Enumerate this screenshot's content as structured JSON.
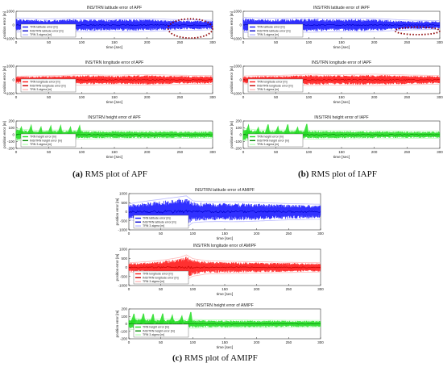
{
  "chart_data": [
    {
      "panel": "a",
      "caption_label": "(a)",
      "caption_text": "RMS plot of APF",
      "subplots": [
        {
          "type": "area",
          "title": "INS/TRN latitude error of APF",
          "ylabel": "position error [m]",
          "xlabel": "time [sec]",
          "xlim": [
            0,
            300
          ],
          "ylim": [
            -1000,
            1000
          ],
          "xticks": [
            0,
            50,
            100,
            150,
            200,
            250,
            300
          ],
          "yticks": [
            -1000,
            0,
            1000
          ],
          "band_color": "#1a1aff",
          "error_color": "#0000cc",
          "sigma_color": "#b8b8ff",
          "legend": [
            "TRN latitude error [m]",
            "INS/TRN latitude error [m]",
            "TRN 3-sigma [m]"
          ],
          "envelope": {
            "x": [
              0,
              20,
              40,
              60,
              80,
              100,
              120,
              140,
              160,
              180,
              200,
              220,
              240,
              260,
              280,
              300
            ],
            "amp": [
              450,
              420,
              380,
              400,
              420,
              430,
              420,
              400,
              420,
              430,
              410,
              380,
              350,
              330,
              320,
              300
            ]
          },
          "annotation": {
            "type": "ellipse",
            "x_range": [
              232,
              300
            ],
            "y_range": [
              -950,
              450
            ],
            "color": "#8b0000"
          }
        },
        {
          "type": "area",
          "title": "INS/TRN longitude error of APF",
          "ylabel": "position error [m]",
          "xlabel": "time [sec]",
          "xlim": [
            0,
            300
          ],
          "ylim": [
            -1000,
            1000
          ],
          "xticks": [
            0,
            50,
            100,
            150,
            200,
            250,
            300
          ],
          "yticks": [
            -1000,
            0,
            1000
          ],
          "band_color": "#ff1a1a",
          "error_color": "#cc0000",
          "sigma_color": "#ffb8b8",
          "legend": [
            "TRN longitude error [m]",
            "INS/TRN longitude error [m]",
            "TRN 3-sigma [m]"
          ],
          "envelope": {
            "x": [
              0,
              20,
              40,
              60,
              80,
              100,
              120,
              140,
              160,
              180,
              200,
              220,
              240,
              260,
              280,
              300
            ],
            "amp": [
              230,
              250,
              260,
              270,
              300,
              340,
              320,
              300,
              310,
              330,
              340,
              320,
              300,
              290,
              280,
              270
            ]
          }
        },
        {
          "type": "area",
          "title": "INS/TRN height error of APF",
          "ylabel": "position error [m]",
          "xlabel": "time [sec]",
          "xlim": [
            0,
            300
          ],
          "ylim": [
            -200,
            200
          ],
          "xticks": [
            0,
            50,
            100,
            150,
            200,
            250,
            300
          ],
          "yticks": [
            -200,
            -100,
            0,
            100,
            200
          ],
          "band_color": "#22dd22",
          "error_color": "#008800",
          "sigma_color": "#b8ffb8",
          "legend": [
            "TRN height error [m]",
            "INS/TRN height error [m]",
            "TRN 3-sigma [m]"
          ],
          "envelope": {
            "x": [
              0,
              20,
              40,
              60,
              80,
              100,
              120,
              140,
              160,
              180,
              200,
              220,
              240,
              260,
              280,
              300
            ],
            "amp": [
              80,
              60,
              55,
              60,
              58,
              55,
              52,
              50,
              52,
              50,
              48,
              50,
              48,
              46,
              45,
              44
            ]
          }
        }
      ]
    },
    {
      "panel": "b",
      "caption_label": "(b)",
      "caption_text": "RMS plot of IAPF",
      "subplots": [
        {
          "type": "area",
          "title": "INS/TRN latitude error of IAPF",
          "ylabel": "position error [m]",
          "xlabel": "time [sec]",
          "xlim": [
            0,
            300
          ],
          "ylim": [
            -1000,
            1000
          ],
          "xticks": [
            0,
            50,
            100,
            150,
            200,
            250,
            300
          ],
          "yticks": [
            -1000,
            0,
            1000
          ],
          "band_color": "#1a1aff",
          "error_color": "#0000cc",
          "sigma_color": "#b8b8ff",
          "legend": [
            "TRN latitude error [m]",
            "INS/TRN latitude error [m]",
            "TRN 3-sigma [m]"
          ],
          "envelope": {
            "x": [
              0,
              20,
              40,
              60,
              80,
              100,
              120,
              140,
              160,
              180,
              200,
              220,
              240,
              260,
              280,
              300
            ],
            "amp": [
              480,
              450,
              420,
              430,
              450,
              460,
              440,
              420,
              430,
              440,
              420,
              380,
              330,
              300,
              290,
              280
            ]
          },
          "annotation": {
            "type": "ellipse",
            "x_range": [
              232,
              300
            ],
            "y_range": [
              -700,
              -150
            ],
            "color": "#8b0000"
          }
        },
        {
          "type": "area",
          "title": "INS/TRN longitude error of IAPF",
          "ylabel": "position error [m]",
          "xlabel": "time [sec]",
          "xlim": [
            0,
            300
          ],
          "ylim": [
            -1000,
            1000
          ],
          "xticks": [
            0,
            50,
            100,
            150,
            200,
            250,
            300
          ],
          "yticks": [
            -1000,
            0,
            1000
          ],
          "band_color": "#ff1a1a",
          "error_color": "#cc0000",
          "sigma_color": "#ffb8b8",
          "legend": [
            "TRN longitude error [m]",
            "INS/TRN longitude error [m]",
            "TRN 3-sigma [m]"
          ],
          "envelope": {
            "x": [
              0,
              20,
              40,
              60,
              80,
              100,
              120,
              140,
              160,
              180,
              200,
              220,
              240,
              260,
              280,
              300
            ],
            "amp": [
              250,
              270,
              280,
              290,
              320,
              360,
              340,
              330,
              340,
              350,
              360,
              340,
              320,
              300,
              290,
              280
            ]
          }
        },
        {
          "type": "area",
          "title": "INS/TRN height error of IAPF",
          "ylabel": "position error [m]",
          "xlabel": "time [sec]",
          "xlim": [
            0,
            300
          ],
          "ylim": [
            -200,
            200
          ],
          "xticks": [
            0,
            50,
            100,
            150,
            200,
            250,
            300
          ],
          "yticks": [
            -200,
            -100,
            0,
            100,
            200
          ],
          "band_color": "#22dd22",
          "error_color": "#008800",
          "sigma_color": "#b8ffb8",
          "legend": [
            "TRN height error [m]",
            "INS/TRN height error [m]",
            "TRN 3-sigma [m]"
          ],
          "envelope": {
            "x": [
              0,
              20,
              40,
              60,
              80,
              100,
              120,
              140,
              160,
              180,
              200,
              220,
              240,
              260,
              280,
              300
            ],
            "amp": [
              80,
              62,
              58,
              60,
              58,
              56,
              54,
              52,
              52,
              50,
              50,
              50,
              48,
              47,
              46,
              45
            ]
          }
        }
      ]
    },
    {
      "panel": "c",
      "caption_label": "(c)",
      "caption_text": "RMS plot of AMIPF",
      "subplots": [
        {
          "type": "area",
          "title": "INS/TRN latitude error of AMIPF",
          "ylabel": "position error [m]",
          "xlabel": "time [sec]",
          "xlim": [
            0,
            300
          ],
          "ylim": [
            -1000,
            1000
          ],
          "xticks": [
            0,
            50,
            100,
            150,
            200,
            250,
            300
          ],
          "yticks": [
            -1000,
            -500,
            0,
            500,
            1000
          ],
          "band_color": "#1a1aff",
          "error_color": "#0000cc",
          "sigma_color": "#b8b8ff",
          "legend": [
            "TRN latitude error [m]",
            "INS/TRN latitude error [m]",
            "TRN 3-sigma [m]"
          ],
          "envelope": {
            "x": [
              0,
              20,
              40,
              60,
              80,
              90,
              100,
              120,
              140,
              160,
              180,
              200,
              220,
              240,
              260,
              280,
              300
            ],
            "amp": [
              380,
              480,
              560,
              640,
              720,
              760,
              520,
              480,
              470,
              480,
              470,
              450,
              420,
              400,
              380,
              370,
              360
            ]
          }
        },
        {
          "type": "area",
          "title": "INS/TRN longitude error of AMIPF",
          "ylabel": "position error [m]",
          "xlabel": "time [sec]",
          "xlim": [
            0,
            300
          ],
          "ylim": [
            -1000,
            1000
          ],
          "xticks": [
            0,
            50,
            100,
            150,
            200,
            250,
            300
          ],
          "yticks": [
            -1000,
            -500,
            0,
            500,
            1000
          ],
          "band_color": "#ff1a1a",
          "error_color": "#cc0000",
          "sigma_color": "#ffb8b8",
          "legend": [
            "TRN longitude error [m]",
            "INS/TRN longitude error [m]",
            "TRN 3-sigma [m]"
          ],
          "envelope": {
            "x": [
              0,
              20,
              40,
              60,
              80,
              90,
              100,
              120,
              140,
              160,
              180,
              200,
              220,
              240,
              260,
              280,
              300
            ],
            "amp": [
              220,
              260,
              300,
              380,
              480,
              600,
              420,
              320,
              300,
              290,
              280,
              270,
              260,
              250,
              240,
              230,
              220
            ]
          }
        },
        {
          "type": "area",
          "title": "INS/TRN height error of AMIPF",
          "ylabel": "position error [m]",
          "xlabel": "time [sec]",
          "xlim": [
            0,
            300
          ],
          "ylim": [
            -200,
            200
          ],
          "xticks": [
            0,
            50,
            100,
            150,
            200,
            250,
            300
          ],
          "yticks": [
            -200,
            -100,
            0,
            100,
            200
          ],
          "band_color": "#22dd22",
          "error_color": "#008800",
          "sigma_color": "#b8ffb8",
          "legend": [
            "TRN height error [m]",
            "INS/TRN height error [m]",
            "TRN 3-sigma [m]"
          ],
          "envelope": {
            "x": [
              0,
              20,
              40,
              60,
              80,
              100,
              120,
              140,
              160,
              180,
              200,
              220,
              240,
              260,
              280,
              300
            ],
            "amp": [
              70,
              60,
              55,
              55,
              52,
              50,
              48,
              46,
              46,
              45,
              44,
              44,
              43,
              42,
              42,
              41
            ]
          }
        }
      ]
    }
  ]
}
